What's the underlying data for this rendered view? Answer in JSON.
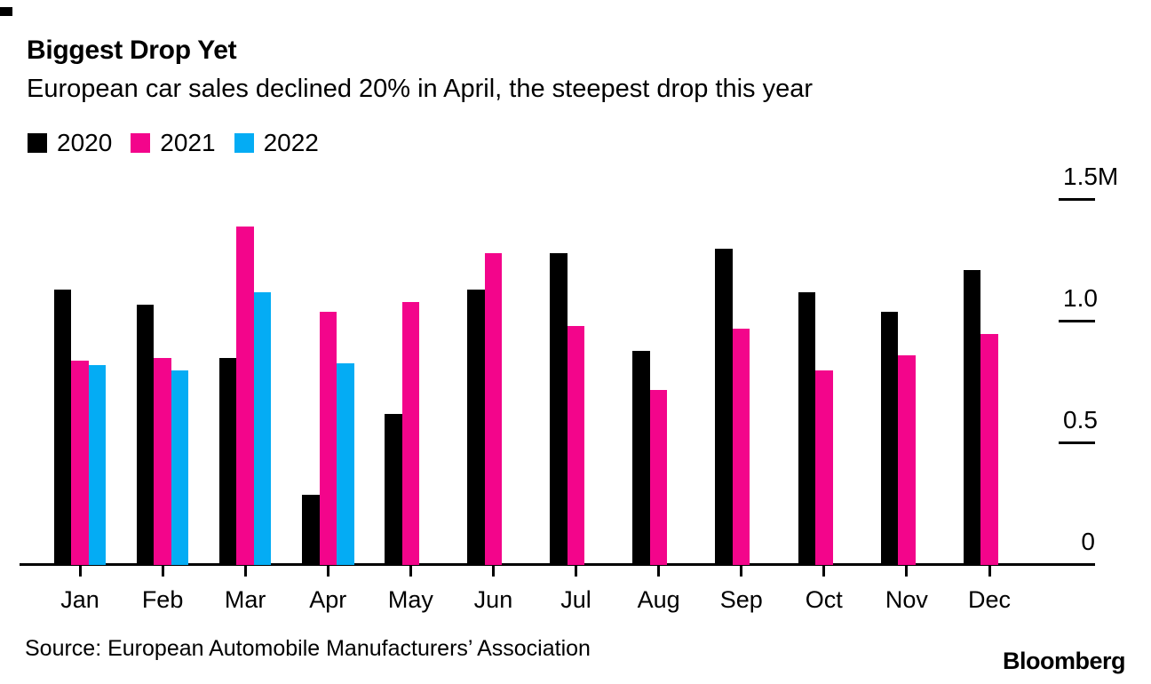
{
  "chart_data": {
    "type": "bar",
    "title": "Biggest Drop Yet",
    "subtitle": "European car sales declined 20% in April, the steepest drop this year",
    "categories": [
      "Jan",
      "Feb",
      "Mar",
      "Apr",
      "May",
      "Jun",
      "Jul",
      "Aug",
      "Sep",
      "Oct",
      "Nov",
      "Dec"
    ],
    "series": [
      {
        "name": "2020",
        "color": "#000000",
        "values": [
          1.13,
          1.07,
          0.85,
          0.29,
          0.62,
          1.13,
          1.28,
          0.88,
          1.3,
          1.12,
          1.04,
          1.21
        ]
      },
      {
        "name": "2021",
        "color": "#f3058b",
        "values": [
          0.84,
          0.85,
          1.39,
          1.04,
          1.08,
          1.28,
          0.98,
          0.72,
          0.97,
          0.8,
          0.86,
          0.95
        ]
      },
      {
        "name": "2022",
        "color": "#04acf4",
        "values": [
          0.82,
          0.8,
          1.12,
          0.83,
          null,
          null,
          null,
          null,
          null,
          null,
          null,
          null
        ]
      }
    ],
    "xlabel": "",
    "ylabel": "",
    "ylim": [
      0,
      1.5
    ],
    "yticks": [
      {
        "value": 0,
        "label": "0"
      },
      {
        "value": 0.5,
        "label": "0.5"
      },
      {
        "value": 1.0,
        "label": "1.0"
      },
      {
        "value": 1.5,
        "label": "1.5M"
      }
    ],
    "unit": "millions of vehicles",
    "grid": false,
    "legend_position": "top-left"
  },
  "footer": {
    "source": "Source: European Automobile Manufacturers’ Association",
    "logo": "Bloomberg"
  }
}
